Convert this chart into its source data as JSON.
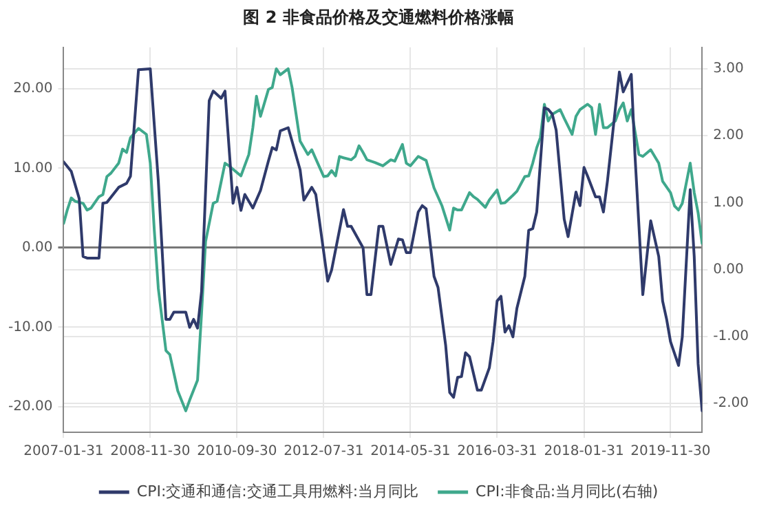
{
  "chart_data": {
    "type": "line",
    "title": "图 2 非食品价格及交通燃料价格涨幅",
    "xlim": [
      "2007-01-31",
      "2020-07-31"
    ],
    "xticks": [
      "2007-01-31",
      "2008-11-30",
      "2010-09-30",
      "2012-07-31",
      "2014-05-31",
      "2016-03-31",
      "2018-01-31",
      "2019-11-30"
    ],
    "ylim": [
      -23.2,
      25.2
    ],
    "yticks": [
      {
        "value": -20,
        "label": "-20.00"
      },
      {
        "value": -10,
        "label": "-10.00"
      },
      {
        "value": 0,
        "label": "0.00"
      },
      {
        "value": 10,
        "label": "10.00"
      },
      {
        "value": 20,
        "label": "20.00"
      }
    ],
    "y2lim": [
      -2.43,
      3.32
    ],
    "y2ticks": [
      {
        "value": -2,
        "label": "-2.00"
      },
      {
        "value": -1,
        "label": "-1.00"
      },
      {
        "value": 0,
        "label": "0.00"
      },
      {
        "value": 1,
        "label": "1.00"
      },
      {
        "value": 2,
        "label": "2.00"
      },
      {
        "value": 3,
        "label": "3.00"
      }
    ],
    "grid": true,
    "legend": "bottom",
    "marker": "none",
    "line_style": "solid",
    "series": [
      {
        "name": "CPI:交通和通信:交通工具用燃料:当月同比",
        "color": "#2f3a6b",
        "x": [
          "2007-01-31",
          "2007-03-31",
          "2007-05-31",
          "2007-06-30",
          "2007-07-31",
          "2007-10-31",
          "2007-11-30",
          "2007-12-31",
          "2008-03-31",
          "2008-05-31",
          "2008-06-30",
          "2008-08-31",
          "2008-11-30",
          "2009-01-31",
          "2009-03-31",
          "2009-04-30",
          "2009-05-31",
          "2009-08-31",
          "2009-09-30",
          "2009-10-31",
          "2009-11-30",
          "2009-12-31",
          "2010-02-28",
          "2010-03-31",
          "2010-05-31",
          "2010-06-30",
          "2010-08-31",
          "2010-09-30",
          "2010-10-31",
          "2010-11-30",
          "2011-01-31",
          "2011-03-31",
          "2011-05-31",
          "2011-06-30",
          "2011-07-31",
          "2011-08-31",
          "2011-10-31",
          "2012-01-31",
          "2012-02-29",
          "2012-04-30",
          "2012-05-31",
          "2012-08-31",
          "2012-09-30",
          "2012-12-31",
          "2013-01-31",
          "2013-02-28",
          "2013-05-31",
          "2013-06-30",
          "2013-07-31",
          "2013-09-30",
          "2013-10-31",
          "2013-12-31",
          "2014-02-28",
          "2014-03-31",
          "2014-04-30",
          "2014-05-31",
          "2014-07-31",
          "2014-08-31",
          "2014-09-30",
          "2014-10-31",
          "2014-11-30",
          "2014-12-31",
          "2015-02-28",
          "2015-03-31",
          "2015-04-30",
          "2015-05-31",
          "2015-06-30",
          "2015-07-31",
          "2015-08-31",
          "2015-10-31",
          "2015-11-30",
          "2016-01-31",
          "2016-02-29",
          "2016-03-31",
          "2016-04-30",
          "2016-05-31",
          "2016-06-30",
          "2016-07-31",
          "2016-08-31",
          "2016-10-31",
          "2016-11-30",
          "2016-12-31",
          "2017-01-31",
          "2017-03-31",
          "2017-04-30",
          "2017-05-31",
          "2017-06-30",
          "2017-08-31",
          "2017-09-30",
          "2017-11-30",
          "2017-12-31",
          "2018-01-31",
          "2018-02-28",
          "2018-04-30",
          "2018-05-31",
          "2018-06-30",
          "2018-07-31",
          "2018-08-31",
          "2018-10-31",
          "2018-11-30",
          "2019-01-31",
          "2019-02-28",
          "2019-04-30",
          "2019-06-30",
          "2019-08-31",
          "2019-09-30",
          "2019-10-31",
          "2019-11-30",
          "2020-01-31",
          "2020-02-29",
          "2020-04-30",
          "2020-05-31",
          "2020-06-30",
          "2020-07-31"
        ],
        "values": [
          10.8,
          9.6,
          6.2,
          -1.1,
          -1.3,
          -1.3,
          5.6,
          5.7,
          7.6,
          8.1,
          9.0,
          22.4,
          22.5,
          8.4,
          -9.0,
          -9.0,
          -8.1,
          -8.1,
          -10.0,
          -9.0,
          -10.1,
          -5.5,
          18.5,
          19.7,
          18.8,
          19.7,
          5.6,
          7.6,
          4.7,
          6.7,
          5.0,
          7.2,
          10.9,
          12.6,
          12.3,
          14.7,
          15.1,
          9.8,
          6.0,
          7.6,
          6.7,
          -4.2,
          -2.8,
          4.8,
          2.7,
          2.7,
          0.0,
          -5.9,
          -5.9,
          2.7,
          2.7,
          -2.1,
          1.1,
          1.0,
          -0.6,
          -0.6,
          4.5,
          5.3,
          4.9,
          0.6,
          -3.6,
          -5.0,
          -12.3,
          -18.2,
          -18.8,
          -16.3,
          -16.2,
          -13.2,
          -13.7,
          -17.9,
          -17.9,
          -15.1,
          -11.8,
          -6.7,
          -6.1,
          -10.6,
          -9.8,
          -11.2,
          -7.6,
          -3.6,
          2.2,
          2.4,
          4.5,
          17.6,
          17.4,
          16.8,
          14.8,
          3.6,
          1.4,
          7.0,
          5.3,
          10.1,
          9.0,
          6.4,
          6.4,
          4.5,
          8.4,
          13.0,
          22.1,
          19.6,
          21.8,
          11.8,
          -5.9,
          3.4,
          -1.1,
          -6.7,
          -9.0,
          -11.8,
          -14.8,
          -11.2,
          7.3,
          -1.1,
          -14.6,
          -20.5
        ]
      },
      {
        "name": "CPI:非食品:当月同比(右轴)",
        "color": "#3fa88c",
        "axis": "y2",
        "x": [
          "2007-01-31",
          "2007-02-28",
          "2007-03-31",
          "2007-04-30",
          "2007-06-30",
          "2007-07-31",
          "2007-08-31",
          "2007-10-31",
          "2007-11-30",
          "2007-12-31",
          "2008-01-31",
          "2008-03-31",
          "2008-04-30",
          "2008-05-31",
          "2008-06-30",
          "2008-08-31",
          "2008-10-31",
          "2008-11-30",
          "2008-12-31",
          "2009-01-31",
          "2009-03-31",
          "2009-04-30",
          "2009-06-30",
          "2009-08-31",
          "2009-09-30",
          "2009-11-30",
          "2009-12-31",
          "2010-01-31",
          "2010-03-31",
          "2010-04-30",
          "2010-06-30",
          "2010-07-31",
          "2010-10-31",
          "2010-12-31",
          "2011-01-31",
          "2011-02-28",
          "2011-03-31",
          "2011-05-31",
          "2011-06-30",
          "2011-07-31",
          "2011-08-31",
          "2011-10-31",
          "2011-11-30",
          "2012-01-31",
          "2012-03-31",
          "2012-04-30",
          "2012-07-31",
          "2012-08-31",
          "2012-09-30",
          "2012-10-31",
          "2012-11-30",
          "2012-12-31",
          "2013-02-28",
          "2013-03-31",
          "2013-04-30",
          "2013-05-31",
          "2013-06-30",
          "2013-08-31",
          "2013-10-31",
          "2013-12-31",
          "2014-01-31",
          "2014-03-31",
          "2014-04-30",
          "2014-05-31",
          "2014-07-31",
          "2014-09-30",
          "2014-11-30",
          "2015-01-31",
          "2015-03-31",
          "2015-04-30",
          "2015-05-31",
          "2015-06-30",
          "2015-08-31",
          "2015-09-30",
          "2015-10-31",
          "2015-12-31",
          "2016-01-31",
          "2016-03-31",
          "2016-04-30",
          "2016-05-31",
          "2016-07-31",
          "2016-08-31",
          "2016-10-31",
          "2016-11-30",
          "2016-12-31",
          "2017-01-31",
          "2017-02-28",
          "2017-03-31",
          "2017-04-30",
          "2017-05-31",
          "2017-07-31",
          "2017-08-31",
          "2017-10-31",
          "2017-11-30",
          "2017-12-31",
          "2018-02-28",
          "2018-03-31",
          "2018-04-30",
          "2018-05-31",
          "2018-06-30",
          "2018-07-31",
          "2018-09-30",
          "2018-10-31",
          "2018-11-30",
          "2018-12-31",
          "2019-01-31",
          "2019-03-31",
          "2019-04-30",
          "2019-06-30",
          "2019-08-31",
          "2019-09-30",
          "2019-11-30",
          "2019-12-31",
          "2020-01-31",
          "2020-02-29",
          "2020-04-30",
          "2020-05-31",
          "2020-06-30",
          "2020-07-31"
        ],
        "values": [
          0.69,
          0.89,
          1.07,
          1.02,
          0.99,
          0.89,
          0.92,
          1.09,
          1.12,
          1.39,
          1.44,
          1.59,
          1.8,
          1.75,
          1.97,
          2.11,
          2.02,
          1.59,
          0.59,
          -0.28,
          -1.21,
          -1.27,
          -1.81,
          -2.11,
          -1.95,
          -1.65,
          -0.65,
          0.42,
          0.99,
          1.02,
          1.59,
          1.55,
          1.4,
          1.72,
          2.12,
          2.59,
          2.29,
          2.69,
          2.72,
          3.0,
          2.91,
          3.0,
          2.72,
          1.92,
          1.72,
          1.79,
          1.39,
          1.4,
          1.48,
          1.4,
          1.69,
          1.67,
          1.64,
          1.69,
          1.85,
          1.75,
          1.64,
          1.6,
          1.55,
          1.64,
          1.62,
          1.87,
          1.59,
          1.55,
          1.69,
          1.63,
          1.22,
          0.95,
          0.59,
          0.92,
          0.89,
          0.89,
          1.15,
          1.09,
          1.05,
          0.93,
          1.04,
          1.19,
          0.99,
          1.0,
          1.11,
          1.17,
          1.39,
          1.4,
          1.59,
          1.82,
          1.97,
          2.47,
          2.22,
          2.32,
          2.39,
          2.26,
          2.02,
          2.29,
          2.39,
          2.47,
          2.42,
          2.02,
          2.47,
          2.12,
          2.12,
          2.22,
          2.39,
          2.49,
          2.22,
          2.39,
          1.72,
          1.69,
          1.79,
          1.59,
          1.32,
          1.15,
          0.95,
          0.89,
          0.99,
          1.59,
          1.15,
          0.85,
          0.39
        ]
      }
    ]
  }
}
